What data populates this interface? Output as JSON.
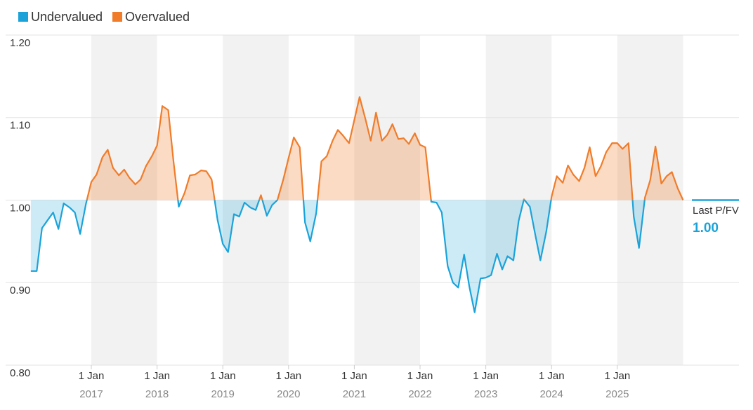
{
  "chart_data": {
    "type": "line",
    "legend": [
      {
        "name": "Undervalued",
        "color": "#1ba3d9"
      },
      {
        "name": "Overvalued",
        "color": "#f07c2a"
      }
    ],
    "threshold": 1.0,
    "last_label": "Last P/FV",
    "last_value_label": "1.00",
    "x": [
      2016.08,
      2016.17,
      2016.25,
      2016.33,
      2016.42,
      2016.5,
      2016.58,
      2016.67,
      2016.75,
      2016.83,
      2016.92,
      2017.0,
      2017.08,
      2017.17,
      2017.25,
      2017.33,
      2017.42,
      2017.5,
      2017.58,
      2017.67,
      2017.75,
      2017.83,
      2017.92,
      2018.0,
      2018.08,
      2018.17,
      2018.25,
      2018.33,
      2018.42,
      2018.5,
      2018.58,
      2018.67,
      2018.75,
      2018.83,
      2018.92,
      2019.0,
      2019.08,
      2019.17,
      2019.25,
      2019.33,
      2019.42,
      2019.5,
      2019.58,
      2019.67,
      2019.75,
      2019.83,
      2019.92,
      2020.0,
      2020.08,
      2020.17,
      2020.25,
      2020.33,
      2020.42,
      2020.5,
      2020.58,
      2020.67,
      2020.75,
      2020.83,
      2020.92,
      2021.0,
      2021.08,
      2021.17,
      2021.25,
      2021.33,
      2021.42,
      2021.5,
      2021.58,
      2021.67,
      2021.75,
      2021.83,
      2021.92,
      2022.0,
      2022.08,
      2022.17,
      2022.25,
      2022.33,
      2022.42,
      2022.5,
      2022.58,
      2022.67,
      2022.75,
      2022.83,
      2022.92,
      2023.0,
      2023.08,
      2023.17,
      2023.25,
      2023.33,
      2023.42,
      2023.5,
      2023.58,
      2023.67,
      2023.75,
      2023.83,
      2023.92,
      2024.0,
      2024.08,
      2024.17,
      2024.25,
      2024.33,
      2024.42,
      2024.5,
      2024.58,
      2024.67,
      2024.75,
      2024.83,
      2024.92,
      2025.0,
      2025.08,
      2025.17,
      2025.25,
      2025.33,
      2025.42,
      2025.5,
      2025.58,
      2025.67,
      2025.75,
      2025.83,
      2025.92,
      2026.0
    ],
    "values": [
      0.914,
      0.914,
      0.966,
      0.975,
      0.985,
      0.965,
      0.996,
      0.991,
      0.985,
      0.959,
      0.996,
      1.022,
      1.031,
      1.052,
      1.061,
      1.039,
      1.03,
      1.037,
      1.027,
      1.019,
      1.025,
      1.041,
      1.053,
      1.066,
      1.114,
      1.109,
      1.047,
      0.992,
      1.009,
      1.03,
      1.031,
      1.036,
      1.035,
      1.025,
      0.976,
      0.947,
      0.937,
      0.983,
      0.98,
      0.997,
      0.991,
      0.988,
      1.006,
      0.981,
      0.994,
      1.0,
      1.025,
      1.051,
      1.076,
      1.064,
      0.973,
      0.95,
      0.984,
      1.047,
      1.053,
      1.072,
      1.085,
      1.078,
      1.069,
      1.097,
      1.125,
      1.098,
      1.072,
      1.106,
      1.072,
      1.079,
      1.092,
      1.074,
      1.075,
      1.068,
      1.081,
      1.067,
      1.064,
      0.998,
      0.997,
      0.985,
      0.92,
      0.9,
      0.894,
      0.934,
      0.895,
      0.864,
      0.905,
      0.906,
      0.909,
      0.935,
      0.916,
      0.932,
      0.927,
      0.975,
      1.001,
      0.992,
      0.959,
      0.927,
      0.962,
      1.004,
      1.029,
      1.021,
      1.042,
      1.031,
      1.023,
      1.039,
      1.064,
      1.029,
      1.041,
      1.058,
      1.069,
      1.069,
      1.062,
      1.069,
      0.98,
      0.942,
      1.003,
      1.024,
      1.065,
      1.02,
      1.029,
      1.034,
      1.014,
      1.0
    ],
    "xlim": [
      2016.06,
      2026.85
    ],
    "ylim": [
      0.8,
      1.2
    ],
    "xticks": [
      {
        "value": 2017,
        "label": "1 Jan"
      },
      {
        "value": 2018,
        "label": "1 Jan"
      },
      {
        "value": 2019,
        "label": "1 Jan"
      },
      {
        "value": 2020,
        "label": "1 Jan"
      },
      {
        "value": 2021,
        "label": "1 Jan"
      },
      {
        "value": 2022,
        "label": "1 Jan"
      },
      {
        "value": 2023,
        "label": "1 Jan"
      },
      {
        "value": 2024,
        "label": "1 Jan"
      },
      {
        "value": 2025,
        "label": "1 Jan"
      }
    ],
    "yticks": [
      {
        "value": 0.8,
        "label": "0.80"
      },
      {
        "value": 0.9,
        "label": "0.90"
      },
      {
        "value": 1.0,
        "label": "1.00"
      },
      {
        "value": 1.1,
        "label": "1.10"
      },
      {
        "value": 1.2,
        "label": "1.20"
      }
    ],
    "grid": true
  }
}
